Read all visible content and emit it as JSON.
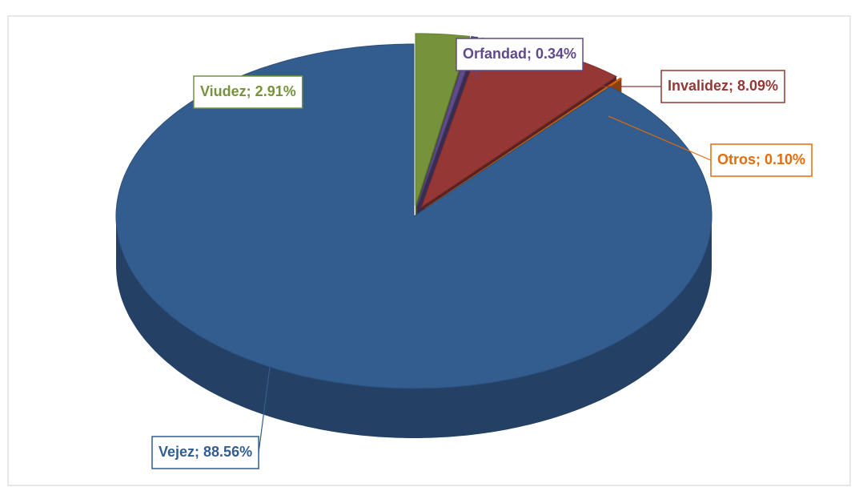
{
  "chart_data": {
    "type": "pie",
    "categories": [
      "Vejez",
      "Viudez",
      "Orfandad",
      "Invalidez",
      "Otros"
    ],
    "values": [
      88.56,
      2.91,
      0.34,
      8.09,
      0.1
    ],
    "value_labels": [
      "Vejez; 88.56%",
      "Viudez; 2.91%",
      "Orfandad; 0.34%",
      "Invalidez; 8.09%",
      "Otros; 0.10%"
    ],
    "colors": [
      "#335c8f",
      "#76933c",
      "#5f4a8b",
      "#953735",
      "#e46c0a"
    ]
  }
}
